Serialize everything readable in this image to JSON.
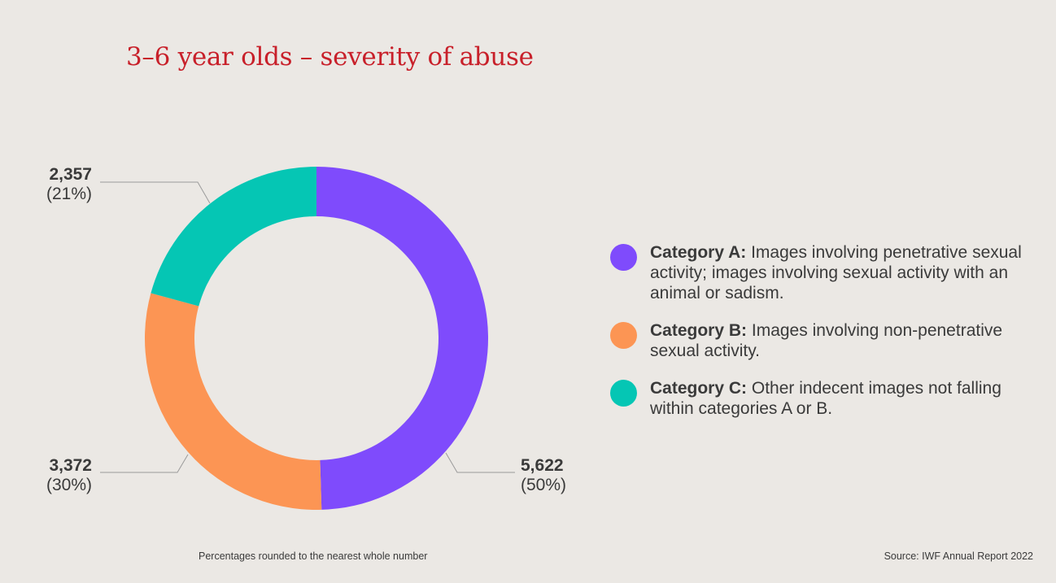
{
  "chart_data": {
    "type": "pie",
    "title": "3–6 year olds – severity of abuse",
    "slices": [
      {
        "name": "Category A",
        "value": 5622,
        "percent_label": "(50%)",
        "value_label": "5,622",
        "color": "#7f4bfc"
      },
      {
        "name": "Category B",
        "value": 3372,
        "percent_label": "(30%)",
        "value_label": "3,372",
        "color": "#fc9554"
      },
      {
        "name": "Category C",
        "value": 2357,
        "percent_label": "(21%)",
        "value_label": "2,357",
        "color": "#05c6b4"
      }
    ],
    "legend": [
      {
        "key": "Category A:",
        "text": " Images involving penetrative sexual activity; images involving sexual activity with an animal or sadism.",
        "color": "#7f4bfc"
      },
      {
        "key": "Category B:",
        "text": " Images involving non-penetrative sexual activity.",
        "color": "#fc9554"
      },
      {
        "key": "Category C:",
        "text": " Other indecent images not falling within categories A or B.",
        "color": "#05c6b4"
      }
    ],
    "footnote": "Percentages rounded to the nearest whole number",
    "source": "Source: IWF Annual Report 2022"
  }
}
